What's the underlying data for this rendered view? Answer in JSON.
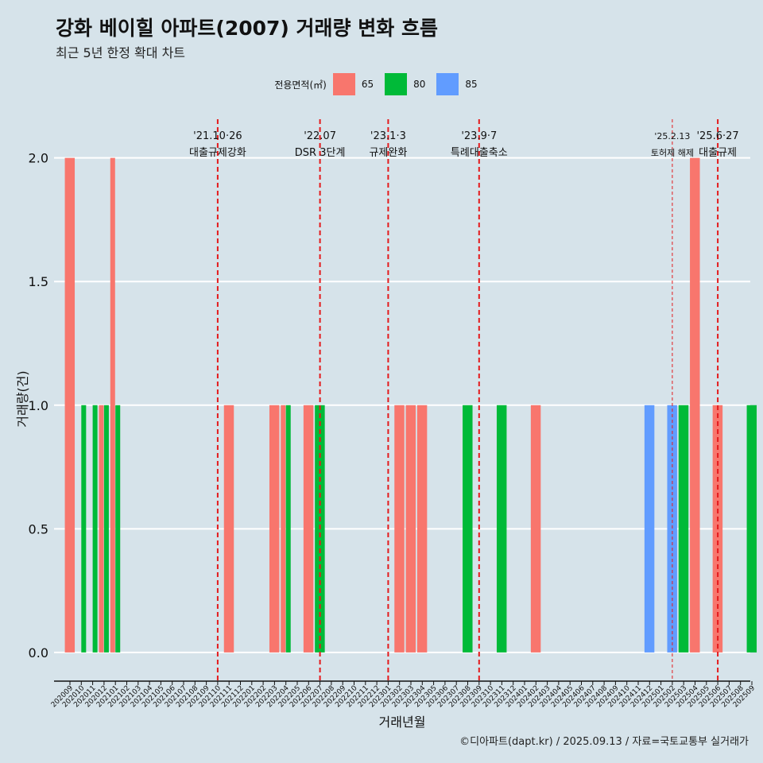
{
  "title": "강화 베이힐 아파트(2007) 거래량 변화 흐름",
  "subtitle": "최근 5년 한정 확대 차트",
  "caption": "©디아파트(dapt.kr) / 2025.09.13 / 자료=국토교통부 실거래가",
  "legend": {
    "title": "전용면적(㎡)",
    "items": [
      {
        "label": "65",
        "color": "#f8766d"
      },
      {
        "label": "80",
        "color": "#00ba38"
      },
      {
        "label": "85",
        "color": "#619cff"
      }
    ]
  },
  "chart_data": {
    "type": "bar",
    "stacking": "dodge",
    "xlabel": "거래년월",
    "ylabel": "거래량(건)",
    "ylim": [
      -0.1,
      2.15
    ],
    "yticks": [
      0.0,
      0.5,
      1.0,
      1.5,
      2.0
    ],
    "ytick_labels": [
      "0.0",
      "0.5",
      "1.0",
      "1.5",
      "2.0"
    ],
    "grid": true,
    "legend_position": "top",
    "categories": [
      "202009",
      "202010",
      "202011",
      "202012",
      "202101",
      "202102",
      "202103",
      "202104",
      "202105",
      "202106",
      "202107",
      "202108",
      "202109",
      "202110",
      "202111",
      "202112",
      "202201",
      "202202",
      "202203",
      "202204",
      "202205",
      "202206",
      "202207",
      "202208",
      "202209",
      "202210",
      "202211",
      "202212",
      "202301",
      "202302",
      "202303",
      "202304",
      "202305",
      "202306",
      "202307",
      "202308",
      "202309",
      "202310",
      "202311",
      "202312",
      "202401",
      "202402",
      "202403",
      "202404",
      "202405",
      "202406",
      "202407",
      "202408",
      "202409",
      "202410",
      "202411",
      "202412",
      "202501",
      "202502",
      "202503",
      "202504",
      "202505",
      "202506",
      "202507",
      "202508",
      "202509"
    ],
    "series": [
      {
        "name": "65",
        "color": "#f8766d",
        "points": [
          {
            "x": "202009",
            "y": 2
          },
          {
            "x": "202010",
            "y": 0
          },
          {
            "x": "202011",
            "y": 0
          },
          {
            "x": "202012",
            "y": 1
          },
          {
            "x": "202101",
            "y": 2
          },
          {
            "x": "202111",
            "y": 1
          },
          {
            "x": "202203",
            "y": 1
          },
          {
            "x": "202204",
            "y": 1
          },
          {
            "x": "202206",
            "y": 1
          },
          {
            "x": "202302",
            "y": 1
          },
          {
            "x": "202303",
            "y": 1
          },
          {
            "x": "202304",
            "y": 1
          },
          {
            "x": "202402",
            "y": 1
          },
          {
            "x": "202504",
            "y": 2
          },
          {
            "x": "202506",
            "y": 1
          }
        ]
      },
      {
        "name": "80",
        "color": "#00ba38",
        "points": [
          {
            "x": "202010",
            "y": 1
          },
          {
            "x": "202011",
            "y": 1
          },
          {
            "x": "202012",
            "y": 1
          },
          {
            "x": "202101",
            "y": 1
          },
          {
            "x": "202204",
            "y": 1
          },
          {
            "x": "202207",
            "y": 1
          },
          {
            "x": "202308",
            "y": 1
          },
          {
            "x": "202311",
            "y": 1
          },
          {
            "x": "202503",
            "y": 1
          },
          {
            "x": "202509",
            "y": 1
          }
        ]
      },
      {
        "name": "85",
        "color": "#619cff",
        "points": [
          {
            "x": "202412",
            "y": 1
          },
          {
            "x": "202502",
            "y": 1
          }
        ]
      }
    ],
    "annotations": [
      {
        "x": "202110",
        "line1": "'21.10·26",
        "line2": "대출규제강화",
        "line_style": "dashed",
        "color": "#e41a1c"
      },
      {
        "x": "202207",
        "line1": "'22.07",
        "line2": "DSR 3단계",
        "line_style": "dashed",
        "color": "#e41a1c"
      },
      {
        "x": "202301",
        "line1": "'23.1·3",
        "line2": "규제완화",
        "line_style": "dashed",
        "color": "#e41a1c"
      },
      {
        "x": "202309",
        "line1": "'23.9·7",
        "line2": "특례대출축소",
        "line_style": "dashed",
        "color": "#e41a1c"
      },
      {
        "x": "202502",
        "line1": "'25.2.13",
        "line2": "토허제 해제",
        "line_style": "thin-dashed",
        "color": "#e41a1c"
      },
      {
        "x": "202506",
        "line1": "'25.6·27",
        "line2": "대출규제",
        "line_style": "dashed",
        "color": "#e41a1c"
      }
    ]
  }
}
